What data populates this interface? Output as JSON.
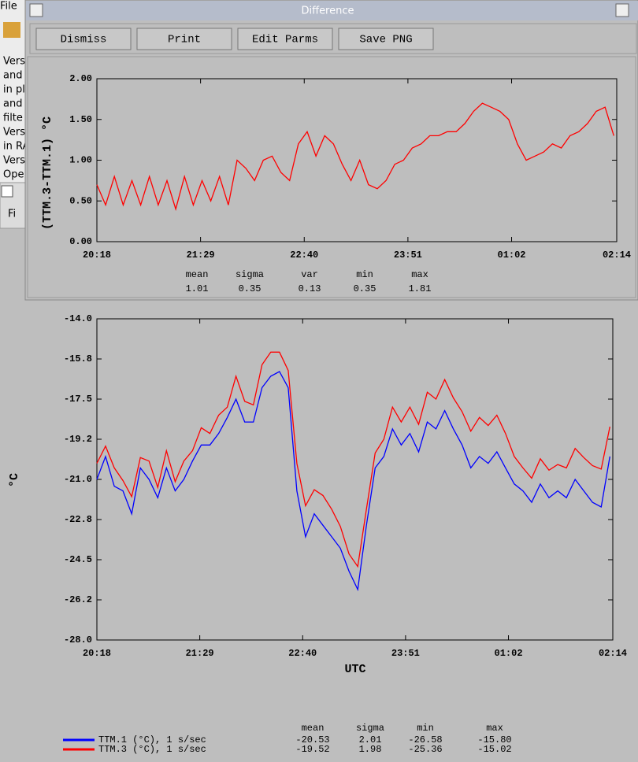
{
  "background": {
    "menu": "File",
    "lines": [
      "Vers",
      "and",
      "in pl",
      "and",
      "filte",
      "Vers",
      "in RA",
      "Vers",
      "Ope"
    ],
    "tab": "Fi"
  },
  "window": {
    "title": "Difference",
    "buttons": [
      "Dismiss",
      "Print",
      "Edit Parms",
      "Save PNG"
    ]
  },
  "chart_data": [
    {
      "type": "line",
      "ylabel": "(TTM.3-TTM.1) °C",
      "x": [
        "20:18",
        "20:24",
        "20:30",
        "20:36",
        "20:42",
        "20:48",
        "20:54",
        "21:00",
        "21:06",
        "21:12",
        "21:18",
        "21:24",
        "21:30",
        "21:36",
        "21:42",
        "21:48",
        "21:54",
        "22:00",
        "22:06",
        "22:12",
        "22:18",
        "22:24",
        "22:30",
        "22:36",
        "22:42",
        "22:48",
        "22:54",
        "23:00",
        "23:06",
        "23:12",
        "23:18",
        "23:24",
        "23:30",
        "23:36",
        "23:42",
        "23:48",
        "23:54",
        "00:00",
        "00:06",
        "00:12",
        "00:18",
        "00:24",
        "00:30",
        "00:36",
        "00:42",
        "00:48",
        "00:54",
        "01:00",
        "01:06",
        "01:12",
        "01:18",
        "01:24",
        "01:30",
        "01:36",
        "01:42",
        "01:48",
        "01:54",
        "02:00",
        "02:06",
        "02:12"
      ],
      "xlim": [
        "20:18",
        "02:14"
      ],
      "xticks": [
        "20:18",
        "21:29",
        "22:40",
        "23:51",
        "01:02",
        "02:14"
      ],
      "ylim": [
        0,
        2
      ],
      "yticks": [
        {
          "value": 0,
          "label": "0.00"
        },
        {
          "value": 0.5,
          "label": "0.50"
        },
        {
          "value": 1,
          "label": "1.00"
        },
        {
          "value": 1.5,
          "label": "1.50"
        },
        {
          "value": 2,
          "label": "2.00"
        }
      ],
      "series": [
        {
          "color": "#ff0000",
          "values": [
            0.7,
            0.45,
            0.8,
            0.45,
            0.75,
            0.45,
            0.8,
            0.45,
            0.75,
            0.4,
            0.8,
            0.45,
            0.75,
            0.5,
            0.8,
            0.45,
            1.0,
            0.9,
            0.75,
            1.0,
            1.05,
            0.85,
            0.75,
            1.2,
            1.35,
            1.05,
            1.3,
            1.2,
            0.95,
            0.75,
            1.0,
            0.7,
            0.65,
            0.75,
            0.95,
            1.0,
            1.15,
            1.2,
            1.3,
            1.3,
            1.35,
            1.35,
            1.45,
            1.6,
            1.7,
            1.65,
            1.6,
            1.5,
            1.2,
            1.0,
            1.05,
            1.1,
            1.2,
            1.15,
            1.3,
            1.35,
            1.45,
            1.6,
            1.65,
            1.3
          ]
        }
      ],
      "stats": {
        "headers": [
          "mean",
          "sigma",
          "var",
          "min",
          "max"
        ],
        "rows": [
          [
            "1.01",
            "0.35",
            "0.13",
            "0.35",
            "1.81"
          ]
        ]
      }
    },
    {
      "type": "line",
      "xlabel": "UTC",
      "ylabel": "°C",
      "x": [
        "20:18",
        "20:24",
        "20:30",
        "20:36",
        "20:42",
        "20:48",
        "20:54",
        "21:00",
        "21:06",
        "21:12",
        "21:18",
        "21:24",
        "21:30",
        "21:36",
        "21:42",
        "21:48",
        "21:54",
        "22:00",
        "22:06",
        "22:12",
        "22:18",
        "22:24",
        "22:30",
        "22:36",
        "22:42",
        "22:48",
        "22:54",
        "23:00",
        "23:06",
        "23:12",
        "23:18",
        "23:24",
        "23:30",
        "23:36",
        "23:42",
        "23:48",
        "23:54",
        "00:00",
        "00:06",
        "00:12",
        "00:18",
        "00:24",
        "00:30",
        "00:36",
        "00:42",
        "00:48",
        "00:54",
        "01:00",
        "01:06",
        "01:12",
        "01:18",
        "01:24",
        "01:30",
        "01:36",
        "01:42",
        "01:48",
        "01:54",
        "02:00",
        "02:06",
        "02:12"
      ],
      "xlim": [
        "20:18",
        "02:14"
      ],
      "xticks": [
        "20:18",
        "21:29",
        "22:40",
        "23:51",
        "01:02",
        "02:14"
      ],
      "ylim": [
        -28,
        -14
      ],
      "yticks": [
        {
          "value": -14,
          "label": "-14.0"
        },
        {
          "value": -15.75,
          "label": "-15.8"
        },
        {
          "value": -17.5,
          "label": "-17.5"
        },
        {
          "value": -19.25,
          "label": "-19.2"
        },
        {
          "value": -21,
          "label": "-21.0"
        },
        {
          "value": -22.75,
          "label": "-22.8"
        },
        {
          "value": -24.5,
          "label": "-24.5"
        },
        {
          "value": -26.25,
          "label": "-26.2"
        },
        {
          "value": -28,
          "label": "-28.0"
        }
      ],
      "series": [
        {
          "name": "TTM.1 (°C), 1 s/sec",
          "color": "#0000ff",
          "values": [
            -21.0,
            -20.0,
            -21.3,
            -21.5,
            -22.5,
            -20.5,
            -21.0,
            -21.8,
            -20.5,
            -21.5,
            -21.0,
            -20.2,
            -19.5,
            -19.5,
            -19.0,
            -18.3,
            -17.5,
            -18.5,
            -18.5,
            -17.0,
            -16.5,
            -16.3,
            -17.0,
            -21.5,
            -23.5,
            -22.5,
            -23.0,
            -23.5,
            -24.0,
            -25.0,
            -25.8,
            -23.0,
            -20.5,
            -20.0,
            -18.8,
            -19.5,
            -19.0,
            -19.8,
            -18.5,
            -18.8,
            -18.0,
            -18.8,
            -19.5,
            -20.5,
            -20.0,
            -20.3,
            -19.8,
            -20.5,
            -21.2,
            -21.5,
            -22.0,
            -21.2,
            -21.8,
            -21.5,
            -21.8,
            -21.0,
            -21.5,
            -22.0,
            -22.2,
            -20.0
          ]
        },
        {
          "name": "TTM.3 (°C), 1 s/sec",
          "color": "#ff0000",
          "values": [
            -20.3,
            -19.55,
            -20.5,
            -21.05,
            -21.75,
            -20.05,
            -20.2,
            -21.35,
            -19.75,
            -21.1,
            -20.2,
            -19.75,
            -18.75,
            -19.0,
            -18.2,
            -17.85,
            -16.5,
            -17.6,
            -17.75,
            -16.0,
            -15.45,
            -15.45,
            -16.25,
            -20.3,
            -22.15,
            -21.45,
            -21.7,
            -22.3,
            -23.05,
            -24.25,
            -24.8,
            -22.3,
            -19.85,
            -19.25,
            -17.85,
            -18.5,
            -17.85,
            -18.6,
            -17.2,
            -17.5,
            -16.65,
            -17.45,
            -18.05,
            -18.9,
            -18.3,
            -18.65,
            -18.2,
            -19.0,
            -20.0,
            -20.5,
            -20.95,
            -20.1,
            -20.6,
            -20.35,
            -20.5,
            -19.65,
            -20.05,
            -20.4,
            -20.55,
            -18.7
          ]
        }
      ],
      "stats": {
        "headers": [
          "mean",
          "sigma",
          "min",
          "max"
        ],
        "rows": [
          [
            "-20.53",
            "2.01",
            "-26.58",
            "-15.80"
          ],
          [
            "-19.52",
            "1.98",
            "-25.36",
            "-15.02"
          ]
        ]
      }
    }
  ]
}
